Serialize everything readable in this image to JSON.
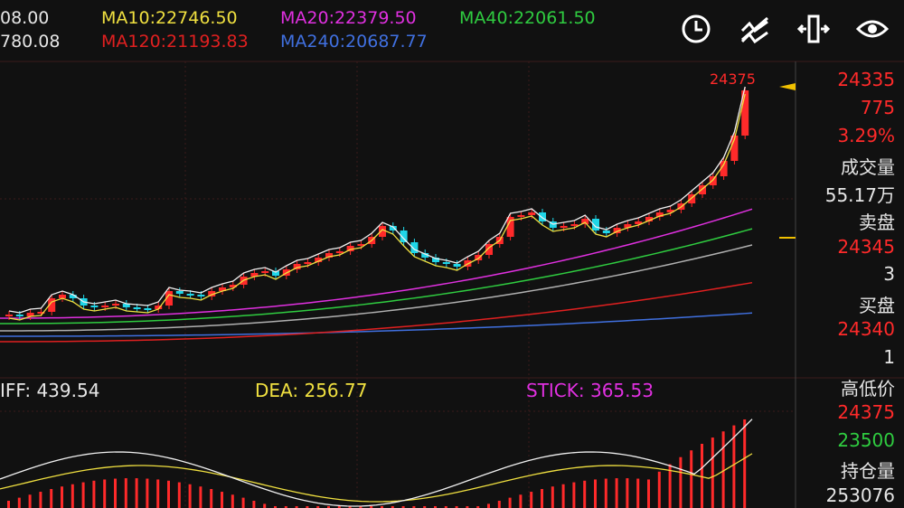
{
  "ma_legend": {
    "price_top": "08.00",
    "price_bottom": "780.08",
    "ma10": "MA10:22746.50",
    "ma20": "MA20:22379.50",
    "ma40": "MA40:22061.50",
    "ma120": "MA120:21193.83",
    "ma240": "MA240:20687.77"
  },
  "toolbar": {
    "icons": [
      "clock-icon",
      "trend-line-icon",
      "crosshair-axis-icon",
      "eye-icon"
    ]
  },
  "chart_labels": {
    "peak_price": "24375"
  },
  "side_panel": {
    "last_price": "24335",
    "change": "775",
    "change_pct": "3.29%",
    "volume_label": "成交量",
    "volume_value": "55.17万",
    "ask_label": "卖盘",
    "ask_price": "24345",
    "ask_qty": "3",
    "bid_label": "买盘",
    "bid_price": "24340",
    "bid_qty": "1",
    "hilo_label": "高低价",
    "high": "24375",
    "low": "23500",
    "oi_label": "持仓量",
    "oi_value": "253076"
  },
  "macd": {
    "diff": "IFF: 439.54",
    "dea": "DEA: 256.77",
    "stick": "STICK: 365.53"
  },
  "colors": {
    "background": "#111111",
    "up": "#ff2a2a",
    "down": "#1fd6e8",
    "ma10": "#f0e040",
    "ma20": "#e030e0",
    "ma40": "#2fcc40",
    "ma120": "#e02020",
    "ma240": "#4070e0",
    "white_line": "#f0f0f0",
    "grid": "#3a1a1a"
  }
}
